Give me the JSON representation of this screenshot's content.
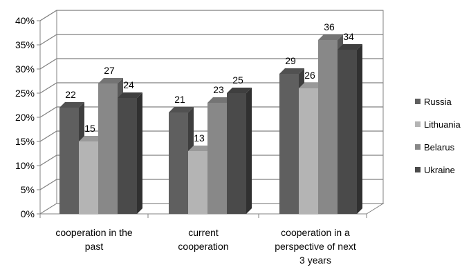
{
  "chart_data": {
    "type": "bar",
    "style": "3d-clustered-column",
    "categories": [
      [
        "cooperation in the",
        "past"
      ],
      [
        "current",
        "cooperation"
      ],
      [
        "cooperation in a",
        "perspective of next",
        "3 years"
      ]
    ],
    "series": [
      {
        "name": "Russia",
        "values": [
          22,
          21,
          29
        ],
        "color": "#5f5f5f"
      },
      {
        "name": "Lithuania",
        "values": [
          15,
          13,
          26
        ],
        "color": "#b4b4b4"
      },
      {
        "name": "Belarus",
        "values": [
          27,
          23,
          36
        ],
        "color": "#888888"
      },
      {
        "name": "Ukraine",
        "values": [
          24,
          25,
          34
        ],
        "color": "#4a4a4a"
      }
    ],
    "y_ticks": [
      "0%",
      "5%",
      "10%",
      "15%",
      "20%",
      "25%",
      "30%",
      "35%",
      "40%"
    ],
    "ylim": [
      0,
      40
    ],
    "y_unit": "%",
    "grid": true,
    "legend_position": "right",
    "data_labels": true
  }
}
